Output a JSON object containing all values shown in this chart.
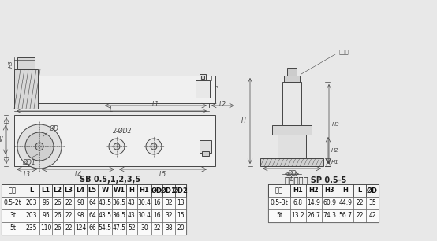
{
  "bg_color": "#e8e8e8",
  "title1": "SB 0.5,1,2,3,5",
  "title2": "连接件组件 SP 0.5-5",
  "table1_headers": [
    "容量",
    "L",
    "L1",
    "L2",
    "L3",
    "L4",
    "L5",
    "W",
    "W1",
    "H",
    "H1",
    "ØD",
    "ØD1",
    "ØD2"
  ],
  "table1_rows": [
    [
      "0.5-2t",
      "203",
      "95",
      "26",
      "22",
      "98",
      "64",
      "43.5",
      "36.5",
      "43",
      "30.4",
      "16",
      "32",
      "13"
    ],
    [
      "3t",
      "203",
      "95",
      "26",
      "22",
      "98",
      "64",
      "43.5",
      "36.5",
      "43",
      "30.4",
      "16",
      "32",
      "15"
    ],
    [
      "5t",
      "235",
      "110",
      "26",
      "22",
      "124",
      "66",
      "54.5",
      "47.5",
      "52",
      "30",
      "22",
      "38",
      "20"
    ]
  ],
  "table2_headers": [
    "容量",
    "H1",
    "H2",
    "H3",
    "H",
    "L",
    "ØD"
  ],
  "table2_rows": [
    [
      "0.5-3t",
      "6.8",
      "14.9",
      "60.9",
      "44.9",
      "22",
      "35"
    ],
    [
      "5t",
      "13.2",
      "26.7",
      "74.3",
      "56.7",
      "22",
      "42"
    ]
  ],
  "drawing_color": "#555555",
  "line_color": "#444444",
  "hatch_color": "#666666",
  "table_header_bg": "#d0d0d0",
  "table_line_color": "#333333",
  "font_size_title": 7,
  "font_size_table": 6.5,
  "font_size_label": 5.5
}
